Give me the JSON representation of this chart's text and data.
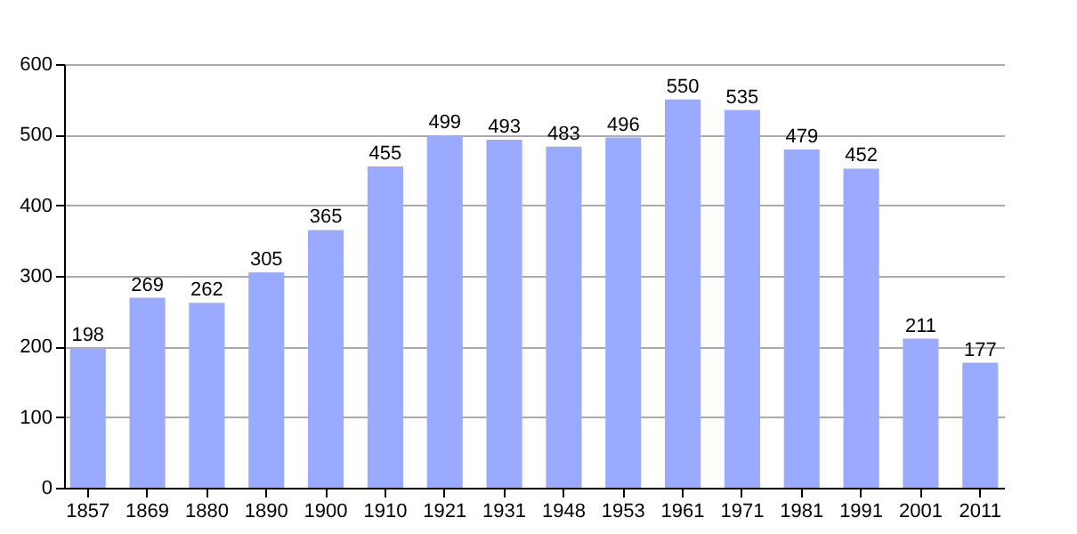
{
  "chart_data": {
    "type": "bar",
    "categories": [
      "1857",
      "1869",
      "1880",
      "1890",
      "1900",
      "1910",
      "1921",
      "1931",
      "1948",
      "1953",
      "1961",
      "1971",
      "1981",
      "1991",
      "2001",
      "2011"
    ],
    "values": [
      198,
      269,
      262,
      305,
      365,
      455,
      499,
      493,
      483,
      496,
      550,
      535,
      479,
      452,
      211,
      177
    ],
    "color": "#99aaff",
    "ylim": [
      0,
      600
    ],
    "yticks": [
      0,
      100,
      200,
      300,
      400,
      500,
      600
    ],
    "grid": "y",
    "data_labels": true
  }
}
